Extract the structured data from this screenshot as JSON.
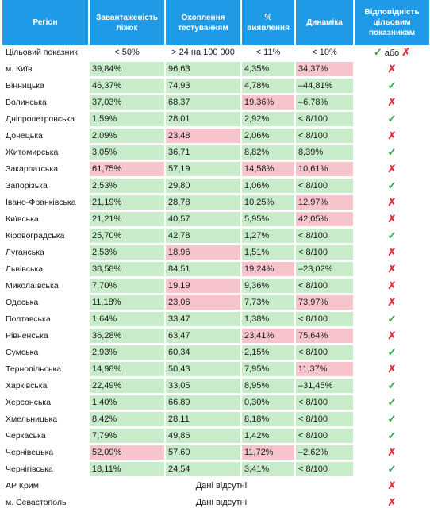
{
  "header": {
    "region": "Регіон",
    "beds": "Завантаженість ліжок",
    "testing": "Охоплення тестуванням",
    "detection": "% виявлення",
    "dynamics": "Динаміка",
    "compliance": "Відповідність цільовим показникам"
  },
  "target": {
    "label": "Цільовий показник",
    "beds": "< 50%",
    "testing": "> 24 на 100 000",
    "detection": "< 11%",
    "dynamics": "< 10%",
    "check": "✓",
    "or": "або",
    "cross": "✗"
  },
  "rows": [
    {
      "region": "м. Київ",
      "beds": "39,84%",
      "beds_bad": false,
      "testing": "96,63",
      "testing_bad": false,
      "detection": "4,35%",
      "detection_bad": false,
      "dynamics": "34,37%",
      "dynamics_bad": true,
      "ok": false
    },
    {
      "region": "Вінницька",
      "beds": "46,37%",
      "beds_bad": false,
      "testing": "74,93",
      "testing_bad": false,
      "detection": "4,78%",
      "detection_bad": false,
      "dynamics": "–44,81%",
      "dynamics_bad": false,
      "ok": true
    },
    {
      "region": "Волинська",
      "beds": "37,03%",
      "beds_bad": false,
      "testing": "68,37",
      "testing_bad": false,
      "detection": "19,36%",
      "detection_bad": true,
      "dynamics": "–6,78%",
      "dynamics_bad": false,
      "ok": false
    },
    {
      "region": "Дніпропетровська",
      "beds": "1,59%",
      "beds_bad": false,
      "testing": "28,01",
      "testing_bad": false,
      "detection": "2,92%",
      "detection_bad": false,
      "dynamics": "< 8/100",
      "dynamics_bad": false,
      "ok": true
    },
    {
      "region": "Донецька",
      "beds": "2,09%",
      "beds_bad": false,
      "testing": "23,48",
      "testing_bad": true,
      "detection": "2,06%",
      "detection_bad": false,
      "dynamics": "< 8/100",
      "dynamics_bad": false,
      "ok": false
    },
    {
      "region": "Житомирська",
      "beds": "3,05%",
      "beds_bad": false,
      "testing": "36,71",
      "testing_bad": false,
      "detection": "8,82%",
      "detection_bad": false,
      "dynamics": "8,39%",
      "dynamics_bad": false,
      "ok": true
    },
    {
      "region": "Закарпатська",
      "beds": "61,75%",
      "beds_bad": true,
      "testing": "57,19",
      "testing_bad": false,
      "detection": "14,58%",
      "detection_bad": true,
      "dynamics": "10,61%",
      "dynamics_bad": true,
      "ok": false
    },
    {
      "region": "Запорізька",
      "beds": "2,53%",
      "beds_bad": false,
      "testing": "29,80",
      "testing_bad": false,
      "detection": "1,06%",
      "detection_bad": false,
      "dynamics": "< 8/100",
      "dynamics_bad": false,
      "ok": true
    },
    {
      "region": "Івано-Франківська",
      "beds": "21,19%",
      "beds_bad": false,
      "testing": "28,78",
      "testing_bad": false,
      "detection": "10,25%",
      "detection_bad": false,
      "dynamics": "12,97%",
      "dynamics_bad": true,
      "ok": false
    },
    {
      "region": "Київська",
      "beds": "21,21%",
      "beds_bad": false,
      "testing": "40,57",
      "testing_bad": false,
      "detection": "5,95%",
      "detection_bad": false,
      "dynamics": "42,05%",
      "dynamics_bad": true,
      "ok": false
    },
    {
      "region": "Кіровоградська",
      "beds": "25,70%",
      "beds_bad": false,
      "testing": "42,78",
      "testing_bad": false,
      "detection": "1,27%",
      "detection_bad": false,
      "dynamics": "< 8/100",
      "dynamics_bad": false,
      "ok": true
    },
    {
      "region": "Луганська",
      "beds": "2,53%",
      "beds_bad": false,
      "testing": "18,96",
      "testing_bad": true,
      "detection": "1,51%",
      "detection_bad": false,
      "dynamics": "< 8/100",
      "dynamics_bad": false,
      "ok": false
    },
    {
      "region": "Львівська",
      "beds": "38,58%",
      "beds_bad": false,
      "testing": "84,51",
      "testing_bad": false,
      "detection": "19,24%",
      "detection_bad": true,
      "dynamics": "–23,02%",
      "dynamics_bad": false,
      "ok": false
    },
    {
      "region": "Миколаївська",
      "beds": "7,70%",
      "beds_bad": false,
      "testing": "19,19",
      "testing_bad": true,
      "detection": "9,36%",
      "detection_bad": false,
      "dynamics": "< 8/100",
      "dynamics_bad": false,
      "ok": false
    },
    {
      "region": "Одеська",
      "beds": "11,18%",
      "beds_bad": false,
      "testing": "23,06",
      "testing_bad": true,
      "detection": "7,73%",
      "detection_bad": false,
      "dynamics": "73,97%",
      "dynamics_bad": true,
      "ok": false
    },
    {
      "region": "Полтавська",
      "beds": "1,64%",
      "beds_bad": false,
      "testing": "33,47",
      "testing_bad": false,
      "detection": "1,38%",
      "detection_bad": false,
      "dynamics": "< 8/100",
      "dynamics_bad": false,
      "ok": true
    },
    {
      "region": "Рівненська",
      "beds": "36,28%",
      "beds_bad": false,
      "testing": "63,47",
      "testing_bad": false,
      "detection": "23,41%",
      "detection_bad": true,
      "dynamics": "75,64%",
      "dynamics_bad": true,
      "ok": false
    },
    {
      "region": "Сумська",
      "beds": "2,93%",
      "beds_bad": false,
      "testing": "60,34",
      "testing_bad": false,
      "detection": "2,15%",
      "detection_bad": false,
      "dynamics": "< 8/100",
      "dynamics_bad": false,
      "ok": true
    },
    {
      "region": "Тернопільська",
      "beds": "14,98%",
      "beds_bad": false,
      "testing": "50,43",
      "testing_bad": false,
      "detection": "7,95%",
      "detection_bad": false,
      "dynamics": "11,37%",
      "dynamics_bad": true,
      "ok": false
    },
    {
      "region": "Харківська",
      "beds": "22,49%",
      "beds_bad": false,
      "testing": "33,05",
      "testing_bad": false,
      "detection": "8,95%",
      "detection_bad": false,
      "dynamics": "–31,45%",
      "dynamics_bad": false,
      "ok": true
    },
    {
      "region": "Херсонська",
      "beds": "1,40%",
      "beds_bad": false,
      "testing": "66,89",
      "testing_bad": false,
      "detection": "0,30%",
      "detection_bad": false,
      "dynamics": "< 8/100",
      "dynamics_bad": false,
      "ok": true
    },
    {
      "region": "Хмельницька",
      "beds": "8,42%",
      "beds_bad": false,
      "testing": "28,11",
      "testing_bad": false,
      "detection": "8,18%",
      "detection_bad": false,
      "dynamics": "< 8/100",
      "dynamics_bad": false,
      "ok": true
    },
    {
      "region": "Черкаська",
      "beds": "7,79%",
      "beds_bad": false,
      "testing": "49,86",
      "testing_bad": false,
      "detection": "1,42%",
      "detection_bad": false,
      "dynamics": "< 8/100",
      "dynamics_bad": false,
      "ok": true
    },
    {
      "region": "Чернівецька",
      "beds": "52,09%",
      "beds_bad": true,
      "testing": "57,60",
      "testing_bad": false,
      "detection": "11,72%",
      "detection_bad": true,
      "dynamics": "–2,62%",
      "dynamics_bad": false,
      "ok": false
    },
    {
      "region": "Чернігівська",
      "beds": "18,11%",
      "beds_bad": false,
      "testing": "24,54",
      "testing_bad": false,
      "detection": "3,41%",
      "detection_bad": false,
      "dynamics": "< 8/100",
      "dynamics_bad": false,
      "ok": true
    }
  ],
  "missing": [
    {
      "region": "АР Крим",
      "note": "Дані відсутні",
      "ok": false
    },
    {
      "region": "м. Севастополь",
      "note": "Дані відсутні",
      "ok": false
    }
  ],
  "marks": {
    "ok": "✓",
    "no": "✗"
  },
  "colors": {
    "header": "#1f9ae6",
    "good": "#c8ecca",
    "bad": "#f7c4cc",
    "check": "#2ea84a",
    "cross": "#e02f3d"
  }
}
